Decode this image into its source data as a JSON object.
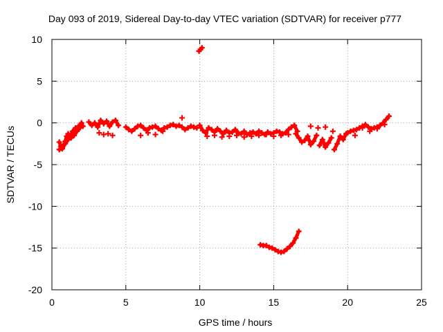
{
  "chart_data": {
    "type": "scatter",
    "title": "Day 093 of 2019, Sidereal Day-to-day VTEC variation (SDTVAR) for receiver p777",
    "xlabel": "GPS time / hours",
    "ylabel": "SDTVAR / TECUs",
    "xlim": [
      0,
      25
    ],
    "ylim": [
      -20,
      10
    ],
    "xticks": [
      0,
      5,
      10,
      15,
      20,
      25
    ],
    "yticks": [
      10,
      5,
      0,
      -5,
      -10,
      -15,
      -20
    ],
    "xtick_labels": [
      "0",
      "5",
      "10",
      "15",
      "20",
      "25"
    ],
    "ytick_labels": [
      "10",
      "5",
      "0",
      "-5",
      "-10",
      "-15",
      "-20"
    ],
    "grid": true,
    "legend": "none",
    "marker": "plus",
    "color": "#ff0000",
    "series": [
      {
        "name": "SDTVAR",
        "x": [
          0.5,
          0.6,
          0.7,
          0.8,
          0.9,
          1.0,
          1.1,
          1.2,
          1.3,
          1.4,
          1.5,
          1.6,
          1.7,
          1.8,
          1.9,
          2.0,
          2.1,
          0.5,
          0.7,
          0.9,
          1.1,
          1.3,
          1.5,
          1.7,
          1.9,
          2.5,
          2.7,
          2.9,
          3.1,
          3.3,
          3.5,
          3.7,
          3.9,
          4.1,
          4.3,
          4.5,
          3.2,
          3.5,
          3.8,
          4.1,
          5.0,
          5.2,
          5.4,
          5.6,
          5.8,
          6.0,
          6.2,
          6.4,
          6.6,
          6.8,
          7.0,
          7.2,
          7.4,
          7.6,
          7.8,
          8.0,
          8.2,
          8.4,
          8.6,
          8.8,
          9.0,
          9.2,
          9.4,
          9.6,
          9.8,
          6.0,
          6.5,
          7.0,
          7.5,
          8.8,
          10.0,
          10.2,
          10.4,
          10.6,
          10.8,
          11.0,
          11.2,
          11.4,
          11.6,
          11.8,
          12.0,
          12.2,
          12.4,
          12.6,
          12.8,
          13.0,
          13.2,
          13.4,
          13.6,
          13.8,
          14.0,
          14.2,
          14.4,
          14.6,
          14.8,
          15.0,
          15.2,
          15.4,
          15.6,
          15.8,
          16.0,
          16.2,
          16.4,
          16.6,
          10.5,
          11.0,
          11.5,
          12.0,
          12.5,
          13.0,
          13.5,
          14.0,
          14.5,
          15.0,
          15.5,
          16.0,
          16.5,
          16.7,
          16.9,
          17.1,
          17.3,
          17.5,
          17.7,
          17.9,
          18.1,
          18.3,
          18.5,
          18.7,
          18.9,
          19.1,
          19.3,
          19.5,
          19.7,
          19.9,
          17.5,
          18.0,
          18.5,
          19.0,
          20.0,
          20.2,
          20.4,
          20.6,
          20.8,
          21.0,
          21.2,
          21.4,
          21.6,
          21.8,
          22.0,
          22.2,
          22.4,
          22.6,
          22.8,
          20.5,
          21.0,
          21.5,
          22.0,
          22.5,
          9.95,
          10.05,
          10.15,
          14.1,
          14.3,
          14.5,
          14.7,
          14.9,
          15.1,
          15.3,
          15.5,
          15.7,
          15.9,
          16.1,
          16.3,
          16.5,
          16.7
        ],
        "y": [
          -2.3,
          -2.8,
          -3.0,
          -2.6,
          -2.2,
          -1.6,
          -1.3,
          -1.7,
          -1.4,
          -1.0,
          -1.1,
          -0.6,
          -0.8,
          -0.4,
          -0.6,
          0.0,
          -0.4,
          -3.2,
          -3.1,
          -2.5,
          -2.0,
          -1.8,
          -1.5,
          -1.0,
          -0.5,
          0.1,
          -0.3,
          0.0,
          -0.5,
          0.3,
          -0.1,
          0.2,
          -0.4,
          0.1,
          0.3,
          -0.3,
          -1.2,
          -1.4,
          -1.3,
          -1.5,
          -0.5,
          -0.8,
          -1.0,
          -0.7,
          -0.4,
          -0.3,
          -0.6,
          -0.9,
          -0.6,
          -0.5,
          -0.4,
          -0.7,
          -0.9,
          -0.6,
          -0.5,
          -0.3,
          -0.2,
          -0.4,
          -0.3,
          -0.5,
          -0.8,
          -0.6,
          -0.4,
          -0.5,
          -0.6,
          -1.5,
          -1.2,
          -1.4,
          -1.0,
          0.6,
          -0.3,
          -0.9,
          -1.2,
          -0.6,
          -0.8,
          -1.1,
          -0.7,
          -1.0,
          -1.3,
          -0.9,
          -1.2,
          -1.1,
          -0.8,
          -1.2,
          -1.3,
          -1.0,
          -1.4,
          -1.2,
          -1.1,
          -1.3,
          -1.0,
          -1.2,
          -1.4,
          -1.1,
          -1.3,
          -1.2,
          -1.0,
          -1.1,
          -1.3,
          -1.2,
          -0.8,
          -0.5,
          -0.3,
          -1.0,
          -1.6,
          -1.5,
          -1.7,
          -1.6,
          -1.5,
          -1.7,
          -1.6,
          -1.5,
          -1.4,
          -1.6,
          -1.5,
          -1.4,
          -1.3,
          -1.8,
          -2.3,
          -2.1,
          -1.6,
          -2.6,
          -2.2,
          -1.5,
          -2.7,
          -2.0,
          -2.9,
          -2.4,
          -1.8,
          -3.2,
          -2.5,
          -1.6,
          -2.0,
          -1.3,
          -0.4,
          -0.6,
          -0.5,
          -1.0,
          -1.2,
          -1.0,
          -0.9,
          -0.8,
          -0.6,
          -0.4,
          -0.2,
          -0.5,
          -0.7,
          -0.6,
          -0.5,
          -0.3,
          0.0,
          0.4,
          0.8,
          -1.5,
          -0.6,
          -1.0,
          -0.7,
          -0.2,
          8.6,
          8.8,
          9.0,
          -14.6,
          -14.7,
          -14.7,
          -14.9,
          -15.0,
          -15.2,
          -15.4,
          -15.5,
          -15.4,
          -15.1,
          -14.8,
          -14.4,
          -13.8,
          -13.0
        ]
      }
    ]
  }
}
